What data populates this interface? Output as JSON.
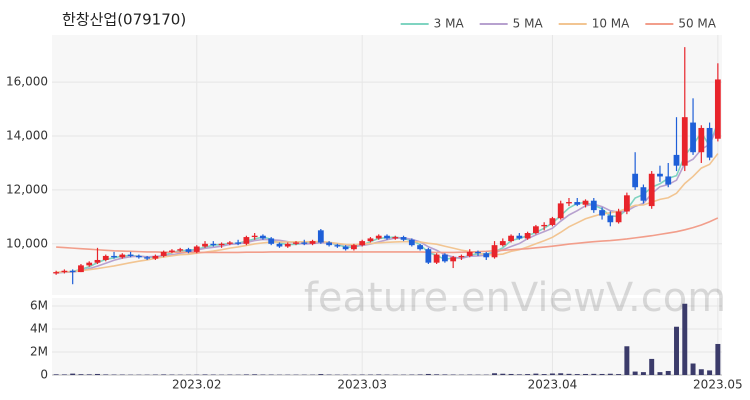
{
  "chart_data": {
    "type": "candlestick",
    "title": "한창산업(079170)",
    "watermark": "feature.enViewV.com",
    "categories": [
      null,
      null,
      null,
      null,
      null,
      null,
      null,
      null,
      null,
      null,
      null,
      null,
      null,
      null,
      null,
      null,
      null,
      "2023.02",
      null,
      null,
      null,
      null,
      null,
      null,
      null,
      null,
      null,
      null,
      null,
      null,
      null,
      null,
      null,
      null,
      null,
      null,
      null,
      "2023.03",
      null,
      null,
      null,
      null,
      null,
      null,
      null,
      null,
      null,
      null,
      null,
      null,
      null,
      null,
      null,
      null,
      null,
      null,
      null,
      null,
      null,
      null,
      "2023.04",
      null,
      null,
      null,
      null,
      null,
      null,
      null,
      null,
      null,
      null,
      null,
      null,
      null,
      null,
      null,
      null,
      null,
      null,
      null,
      "2023.05"
    ],
    "open": [
      8900,
      8950,
      9000,
      8950,
      9200,
      9300,
      9400,
      9550,
      9500,
      9600,
      9550,
      9500,
      9450,
      9550,
      9700,
      9750,
      9800,
      9700,
      9900,
      10000,
      9950,
      10000,
      10050,
      10000,
      10250,
      10300,
      10200,
      10000,
      9900,
      10000,
      10050,
      10000,
      10500,
      10050,
      9950,
      9900,
      9800,
      9950,
      10100,
      10200,
      10300,
      10200,
      10250,
      10150,
      9950,
      9800,
      9300,
      9600,
      9350,
      9500,
      9550,
      9700,
      9650,
      9500,
      9950,
      10100,
      10300,
      10200,
      10400,
      10650,
      10700,
      10950,
      11500,
      11550,
      11450,
      11600,
      11250,
      11050,
      10800,
      11200,
      12600,
      12100,
      11400,
      12600,
      12500,
      13300,
      12900,
      14500,
      13400,
      14300,
      13900
    ],
    "high": [
      9000,
      9050,
      9050,
      9250,
      9350,
      9850,
      9600,
      9700,
      9650,
      9700,
      9600,
      9550,
      9600,
      9750,
      9800,
      9850,
      9850,
      9950,
      10100,
      10100,
      10050,
      10100,
      10150,
      10300,
      10400,
      10350,
      10250,
      10050,
      10050,
      10100,
      10150,
      10150,
      10550,
      10100,
      10000,
      9950,
      10000,
      10150,
      10250,
      10350,
      10350,
      10300,
      10300,
      10200,
      10000,
      9850,
      9650,
      9650,
      9550,
      9600,
      9800,
      9750,
      9700,
      10100,
      10200,
      10350,
      10400,
      10450,
      10700,
      10800,
      11000,
      11600,
      11700,
      11700,
      11650,
      11700,
      11350,
      11200,
      11300,
      11900,
      13400,
      12200,
      12700,
      12900,
      13000,
      14700,
      17300,
      15400,
      14400,
      14500,
      16700
    ],
    "low": [
      8850,
      8900,
      8500,
      8950,
      9150,
      9250,
      9350,
      9450,
      9450,
      9500,
      9450,
      9400,
      9400,
      9500,
      9650,
      9700,
      9650,
      9650,
      9850,
      9900,
      9850,
      9950,
      9950,
      9950,
      10150,
      10150,
      9950,
      9850,
      9850,
      9950,
      9950,
      9950,
      10000,
      9900,
      9850,
      9750,
      9750,
      9900,
      10050,
      10150,
      10150,
      10150,
      10100,
      9900,
      9750,
      9250,
      9250,
      9300,
      9100,
      9400,
      9500,
      9550,
      9400,
      9450,
      9900,
      10050,
      10150,
      10150,
      10350,
      10500,
      10650,
      10900,
      11400,
      11400,
      11350,
      11150,
      10900,
      10650,
      10750,
      11100,
      12000,
      11500,
      11300,
      12300,
      12100,
      12700,
      12700,
      13300,
      13000,
      13100,
      13800
    ],
    "close": [
      8950,
      9000,
      8950,
      9200,
      9300,
      9400,
      9550,
      9500,
      9600,
      9550,
      9500,
      9450,
      9550,
      9700,
      9750,
      9800,
      9700,
      9900,
      10000,
      9950,
      10000,
      10050,
      10000,
      10250,
      10300,
      10200,
      10000,
      9900,
      10000,
      10050,
      10000,
      10100,
      10050,
      9950,
      9900,
      9800,
      9950,
      10100,
      10200,
      10300,
      10200,
      10250,
      10150,
      9950,
      9800,
      9300,
      9600,
      9350,
      9500,
      9550,
      9700,
      9650,
      9500,
      9950,
      10100,
      10300,
      10200,
      10400,
      10650,
      10700,
      10950,
      11500,
      11550,
      11450,
      11600,
      11250,
      11050,
      10800,
      11200,
      11800,
      12100,
      11600,
      12600,
      12500,
      12200,
      12900,
      14700,
      13400,
      14300,
      13200,
      16100
    ],
    "up_color": "#e8242b",
    "down_color": "#1e5fd8",
    "ylim": [
      8100,
      17750
    ],
    "yticks": [
      {
        "value": 10000,
        "label": "10,000"
      },
      {
        "value": 12000,
        "label": "12,000"
      },
      {
        "value": 14000,
        "label": "14,000"
      },
      {
        "value": 16000,
        "label": "16,000"
      }
    ],
    "grid": true,
    "legend": "top-right",
    "series": [
      {
        "name": "3 MA",
        "color": "#7fd4c1",
        "values": [
          8930,
          8950,
          8970,
          9050,
          9150,
          9300,
          9420,
          9480,
          9550,
          9550,
          9550,
          9500,
          9500,
          9570,
          9670,
          9750,
          9750,
          9800,
          9870,
          9950,
          9980,
          10000,
          10020,
          10100,
          10180,
          10250,
          10170,
          10030,
          9970,
          9980,
          10020,
          10050,
          10050,
          10030,
          9970,
          9880,
          9880,
          9950,
          10080,
          10200,
          10230,
          10250,
          10200,
          10120,
          9970,
          9680,
          9570,
          9420,
          9480,
          9470,
          9580,
          9630,
          9620,
          9700,
          9850,
          10120,
          10200,
          10300,
          10420,
          10580,
          10770,
          11050,
          11330,
          11500,
          11530,
          11430,
          11300,
          11030,
          11020,
          11270,
          11700,
          11830,
          12100,
          12230,
          12430,
          12530,
          13270,
          13670,
          14130,
          13630,
          14530
        ]
      },
      {
        "name": "5 MA",
        "color": "#b7a1cf",
        "values": [
          8920,
          8940,
          8950,
          9000,
          9080,
          9170,
          9280,
          9390,
          9470,
          9520,
          9540,
          9520,
          9530,
          9550,
          9590,
          9650,
          9700,
          9770,
          9830,
          9870,
          9910,
          9980,
          10000,
          10050,
          10120,
          10160,
          10150,
          10130,
          10080,
          10030,
          9990,
          10010,
          10040,
          10030,
          10000,
          9960,
          9930,
          9940,
          9990,
          10070,
          10150,
          10210,
          10220,
          10170,
          10070,
          9890,
          9760,
          9600,
          9510,
          9460,
          9540,
          9550,
          9580,
          9670,
          9780,
          9900,
          10010,
          10190,
          10330,
          10450,
          10580,
          10840,
          11070,
          11230,
          11410,
          11470,
          11380,
          11230,
          11180,
          11220,
          11390,
          11500,
          11860,
          12120,
          12200,
          12360,
          12980,
          13140,
          13500,
          13700,
          14340
        ]
      },
      {
        "name": "10 MA",
        "color": "#f2c592",
        "values": [
          8950,
          8960,
          8970,
          9000,
          9040,
          9080,
          9130,
          9180,
          9240,
          9300,
          9355,
          9400,
          9460,
          9510,
          9555,
          9595,
          9610,
          9650,
          9690,
          9730,
          9780,
          9840,
          9885,
          9940,
          9995,
          10035,
          10065,
          10065,
          10065,
          10075,
          10075,
          10080,
          10085,
          10055,
          10015,
          9975,
          9970,
          9990,
          10010,
          10035,
          10055,
          10070,
          10080,
          10080,
          10070,
          10020,
          9985,
          9910,
          9840,
          9765,
          9715,
          9655,
          9590,
          9590,
          9620,
          9720,
          9780,
          9885,
          10000,
          10115,
          10240,
          10425,
          10630,
          10780,
          10930,
          11025,
          11110,
          11150,
          11205,
          11315,
          11430,
          11440,
          11545,
          11650,
          11710,
          11875,
          12240,
          12500,
          12810,
          12950,
          13350
        ]
      },
      {
        "name": "50 MA",
        "color": "#f29e8b",
        "values": [
          9880,
          9860,
          9840,
          9820,
          9800,
          9780,
          9760,
          9740,
          9730,
          9720,
          9710,
          9700,
          9700,
          9690,
          9690,
          9690,
          9680,
          9680,
          9680,
          9680,
          9680,
          9680,
          9680,
          9690,
          9690,
          9690,
          9700,
          9700,
          9700,
          9700,
          9700,
          9700,
          9700,
          9700,
          9700,
          9700,
          9700,
          9700,
          9700,
          9700,
          9700,
          9700,
          9700,
          9700,
          9700,
          9690,
          9680,
          9680,
          9680,
          9690,
          9700,
          9710,
          9720,
          9740,
          9760,
          9780,
          9800,
          9820,
          9850,
          9880,
          9910,
          9950,
          9990,
          10020,
          10050,
          10080,
          10100,
          10120,
          10150,
          10180,
          10220,
          10260,
          10300,
          10350,
          10400,
          10450,
          10520,
          10600,
          10700,
          10820,
          10960
        ]
      }
    ],
    "volume": {
      "color": "#3b3b6a",
      "ylim": [
        0,
        6700000
      ],
      "yticks": [
        0,
        {
          "value": 2000000,
          "label": "2M"
        },
        {
          "value": 4000000,
          "label": "4M"
        },
        {
          "value": 6000000,
          "label": "6M"
        }
      ],
      "values": [
        60000,
        50000,
        120000,
        70000,
        60000,
        90000,
        50000,
        40000,
        40000,
        30000,
        30000,
        30000,
        40000,
        50000,
        40000,
        30000,
        30000,
        40000,
        50000,
        40000,
        30000,
        40000,
        30000,
        50000,
        60000,
        40000,
        40000,
        30000,
        30000,
        30000,
        30000,
        30000,
        80000,
        40000,
        30000,
        30000,
        30000,
        40000,
        40000,
        50000,
        30000,
        30000,
        30000,
        40000,
        50000,
        90000,
        60000,
        50000,
        40000,
        30000,
        40000,
        30000,
        30000,
        150000,
        110000,
        90000,
        60000,
        80000,
        120000,
        80000,
        130000,
        150000,
        100000,
        80000,
        90000,
        100000,
        90000,
        110000,
        80000,
        2500000,
        300000,
        250000,
        1400000,
        250000,
        350000,
        4200000,
        6200000,
        1000000,
        500000,
        400000,
        2700000
      ]
    }
  }
}
